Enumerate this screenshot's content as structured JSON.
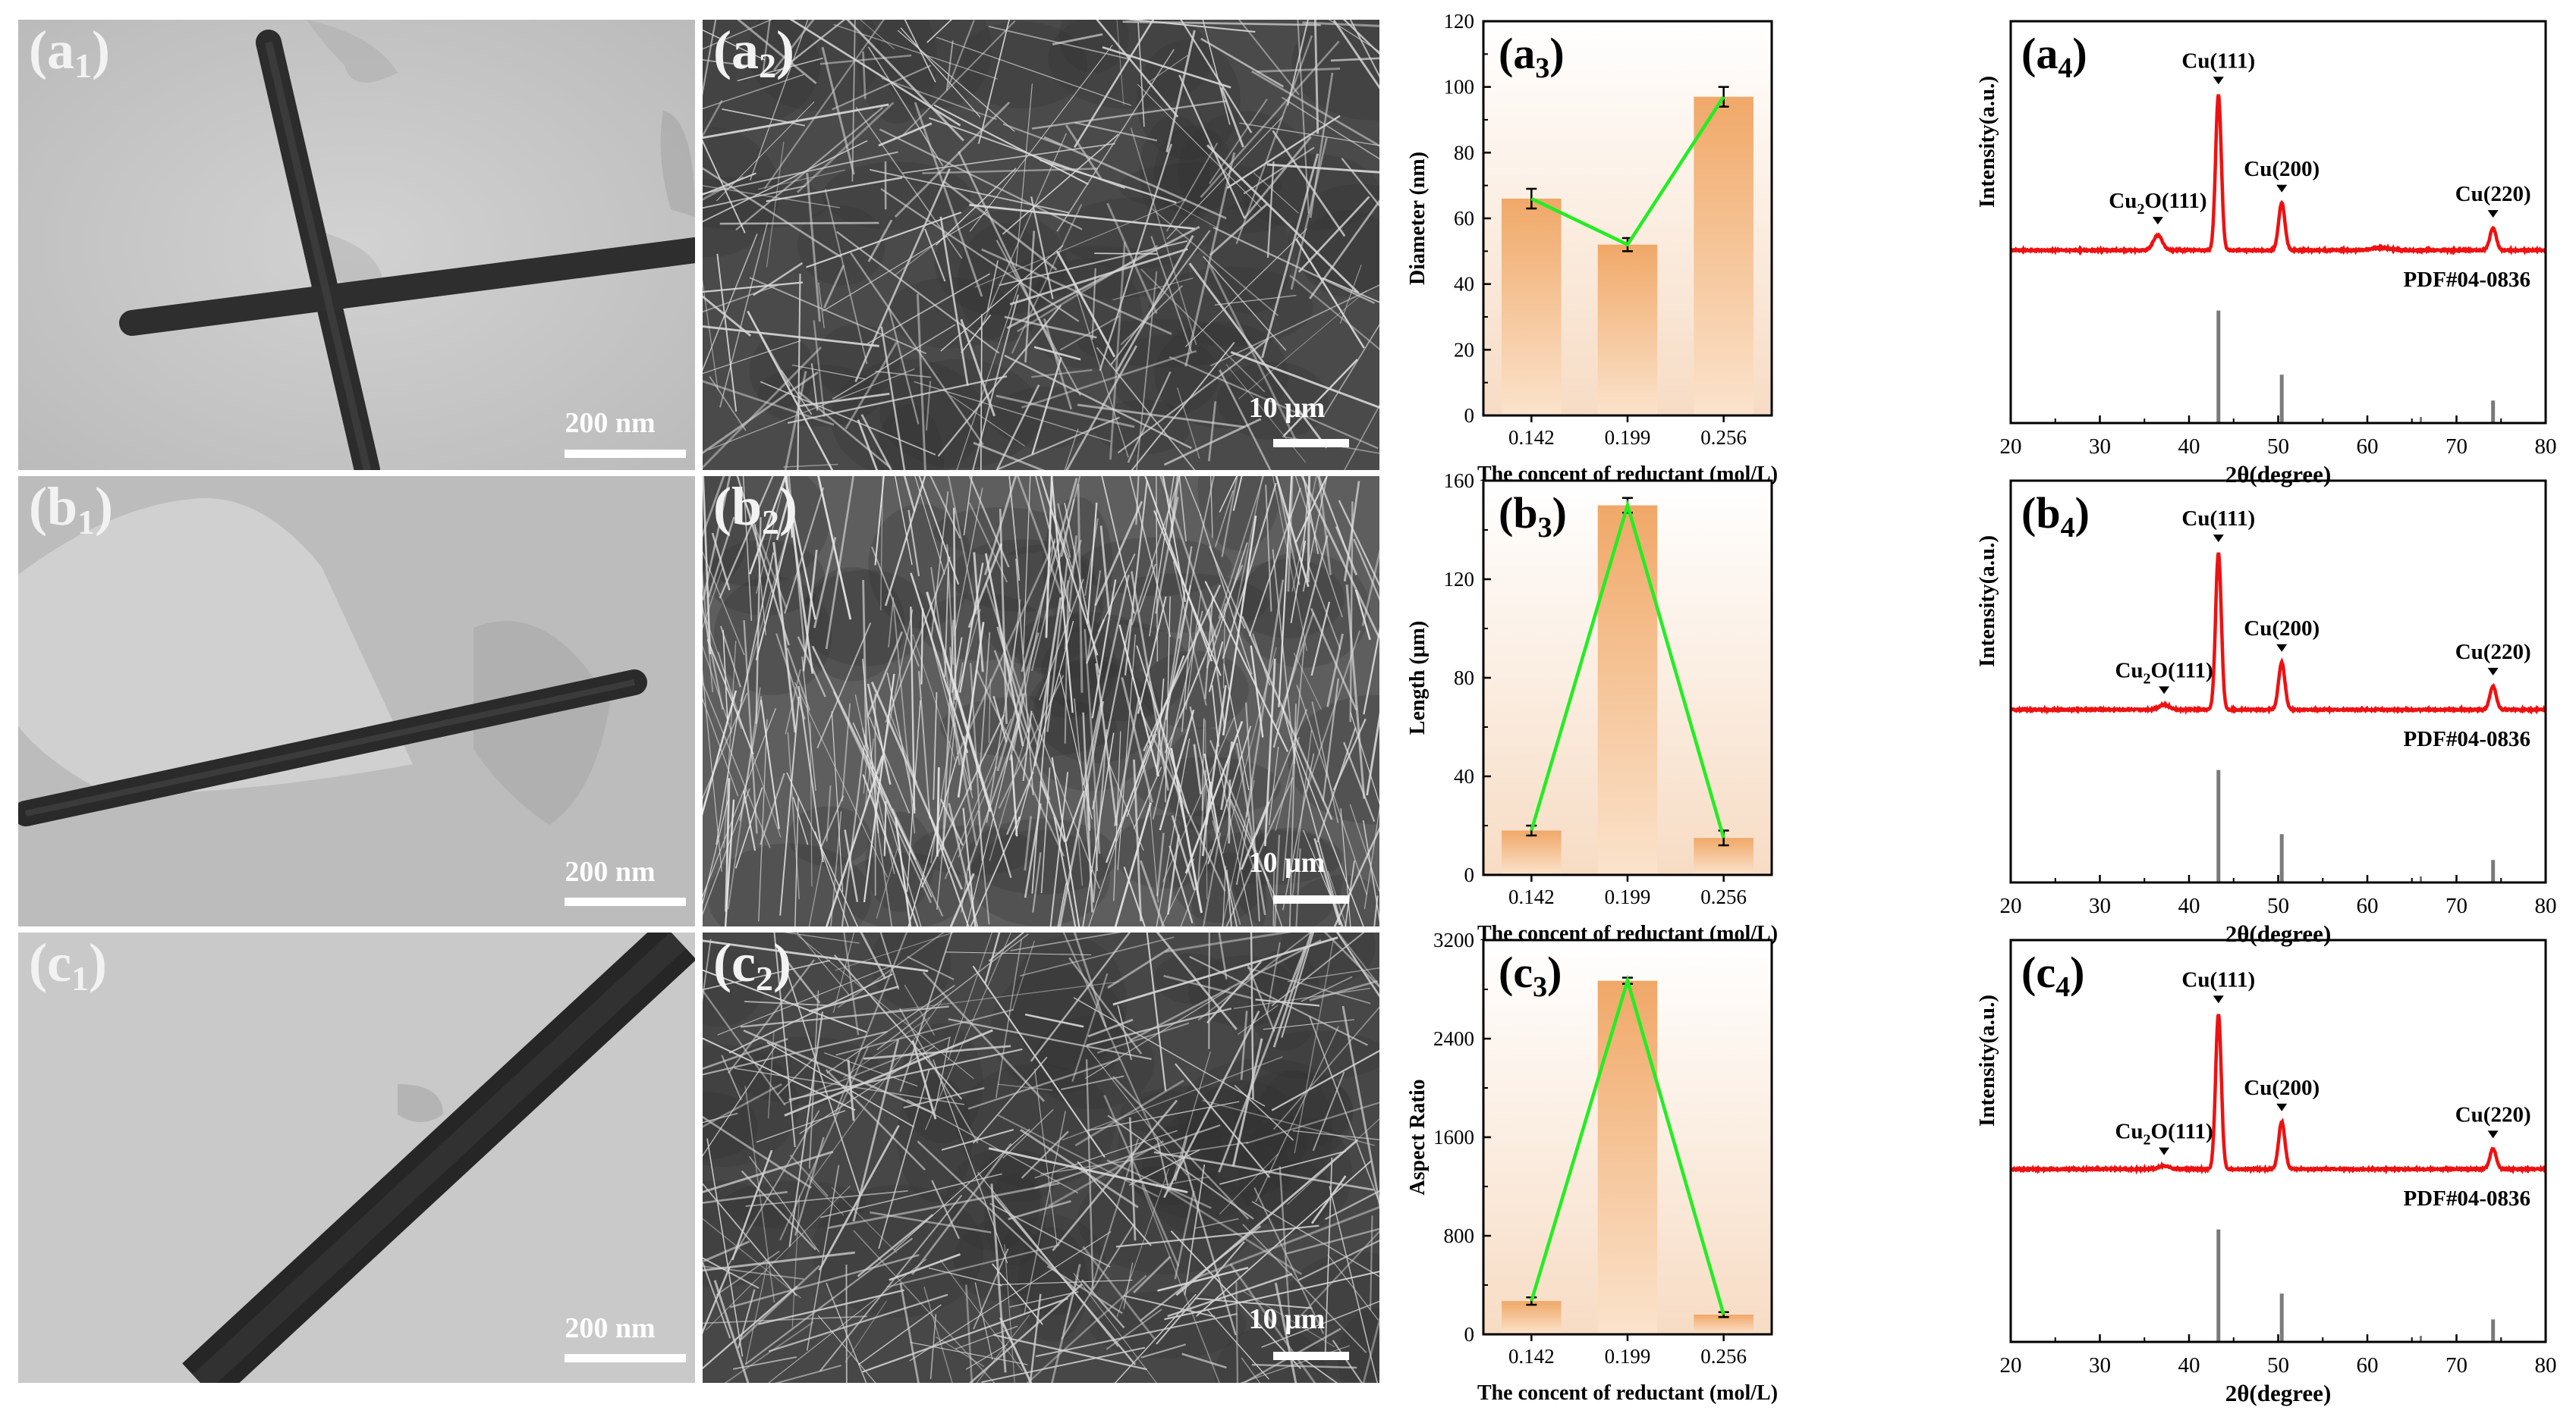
{
  "figure": {
    "panels": {
      "a1": {
        "label_main": "(a",
        "label_sub": "1",
        "label_end": ")",
        "scale_text": "200 nm"
      },
      "a2": {
        "label_main": "(a",
        "label_sub": "2",
        "label_end": ")",
        "scale_text": "10 μm"
      },
      "b1": {
        "label_main": "(b",
        "label_sub": "1",
        "label_end": ")",
        "scale_text": "200 nm"
      },
      "b2": {
        "label_main": "(b",
        "label_sub": "2",
        "label_end": ")",
        "scale_text": "10 μm"
      },
      "c1": {
        "label_main": "(c",
        "label_sub": "1",
        "label_end": ")",
        "scale_text": "200 nm"
      },
      "c2": {
        "label_main": "(c",
        "label_sub": "2",
        "label_end": ")",
        "scale_text": "10 μm"
      }
    },
    "colors": {
      "bar_top": "#f0a868",
      "bar_bottom": "#fbe3cc",
      "trend_line": "#22ee22",
      "xrd_line": "#ee1111",
      "ref_bar": "#7a7a7a",
      "bg_top": "#ffffff",
      "bg_bottom": "#f7dcc4"
    }
  },
  "chart_data": [
    {
      "id": "a3",
      "type": "bar",
      "panel_label_main": "(a",
      "panel_label_sub": "3",
      "panel_label_end": ")",
      "categories": [
        "0.142",
        "0.199",
        "0.256"
      ],
      "values": [
        66,
        52,
        97
      ],
      "errors": [
        3,
        2,
        3
      ],
      "ylabel": "Diameter (nm)",
      "xlabel": "The concent of reductant (mol/L)",
      "ylim": [
        0,
        120
      ],
      "yticks": [
        "0",
        "20",
        "40",
        "60",
        "80",
        "100",
        "120"
      ],
      "trend_line": true
    },
    {
      "id": "b3",
      "type": "bar",
      "panel_label_main": "(b",
      "panel_label_sub": "3",
      "panel_label_end": ")",
      "categories": [
        "0.142",
        "0.199",
        "0.256"
      ],
      "values": [
        18,
        150,
        15
      ],
      "errors": [
        2,
        3,
        3
      ],
      "ylabel": "Length (μm)",
      "xlabel": "The concent of reductant (mol/L)",
      "ylim": [
        0,
        160
      ],
      "yticks": [
        "0",
        "40",
        "80",
        "120",
        "160"
      ],
      "trend_line": true
    },
    {
      "id": "c3",
      "type": "bar",
      "panel_label_main": "(c",
      "panel_label_sub": "3",
      "panel_label_end": ")",
      "categories": [
        "0.142",
        "0.199",
        "0.256"
      ],
      "values": [
        270,
        2870,
        160
      ],
      "errors": [
        30,
        25,
        20
      ],
      "ylabel": "Aspect Ratio",
      "xlabel": "The concent of reductant (mol/L)",
      "ylim": [
        0,
        3200
      ],
      "yticks": [
        "0",
        "800",
        "1600",
        "2400",
        "3200"
      ],
      "trend_line": true
    },
    {
      "id": "a4",
      "type": "line",
      "panel_label_main": "(a",
      "panel_label_sub": "4",
      "panel_label_end": ")",
      "xlabel": "2θ(degree)",
      "ylabel": "Intensity(a.u.)",
      "xlim": [
        20,
        80
      ],
      "xticks": [
        "20",
        "30",
        "40",
        "50",
        "60",
        "70",
        "80"
      ],
      "baseline": 0.14,
      "peaks": [
        {
          "x": 36.5,
          "height": 0.09,
          "width": 0.7
        },
        {
          "x": 43.3,
          "height": 0.92,
          "width": 0.45
        },
        {
          "x": 50.4,
          "height": 0.28,
          "width": 0.5
        },
        {
          "x": 61.5,
          "height": 0.015,
          "width": 1.5
        },
        {
          "x": 74.1,
          "height": 0.13,
          "width": 0.5
        }
      ],
      "peak_labels": [
        {
          "x": 36.5,
          "main": "Cu",
          "sub": "2",
          "rest": "O(111)"
        },
        {
          "x": 43.3,
          "main": "Cu(111)",
          "sub": "",
          "rest": ""
        },
        {
          "x": 50.4,
          "main": "Cu(200)",
          "sub": "",
          "rest": ""
        },
        {
          "x": 74.1,
          "main": "Cu(220)",
          "sub": "",
          "rest": ""
        }
      ],
      "reference_label": "PDF#04-0836",
      "reference_lines": [
        {
          "x": 43.3,
          "intensity": 1.0
        },
        {
          "x": 50.4,
          "intensity": 0.43
        },
        {
          "x": 74.1,
          "intensity": 0.2
        }
      ]
    },
    {
      "id": "b4",
      "type": "line",
      "panel_label_main": "(b",
      "panel_label_sub": "4",
      "panel_label_end": ")",
      "xlabel": "2θ(degree)",
      "ylabel": "Intensity(a.u.)",
      "xlim": [
        20,
        80
      ],
      "xticks": [
        "20",
        "30",
        "40",
        "50",
        "60",
        "70",
        "80"
      ],
      "baseline": 0.14,
      "peaks": [
        {
          "x": 37.2,
          "height": 0.03,
          "width": 0.8
        },
        {
          "x": 43.3,
          "height": 0.93,
          "width": 0.45
        },
        {
          "x": 50.4,
          "height": 0.28,
          "width": 0.5
        },
        {
          "x": 74.1,
          "height": 0.14,
          "width": 0.5
        }
      ],
      "peak_labels": [
        {
          "x": 37.2,
          "main": "Cu",
          "sub": "2",
          "rest": "O(111)"
        },
        {
          "x": 43.3,
          "main": "Cu(111)",
          "sub": "",
          "rest": ""
        },
        {
          "x": 50.4,
          "main": "Cu(200)",
          "sub": "",
          "rest": ""
        },
        {
          "x": 74.1,
          "main": "Cu(220)",
          "sub": "",
          "rest": ""
        }
      ],
      "reference_label": "PDF#04-0836",
      "reference_lines": [
        {
          "x": 43.3,
          "intensity": 1.0
        },
        {
          "x": 50.4,
          "intensity": 0.43
        },
        {
          "x": 74.1,
          "intensity": 0.2
        }
      ]
    },
    {
      "id": "c4",
      "type": "line",
      "panel_label_main": "(c",
      "panel_label_sub": "4",
      "panel_label_end": ")",
      "xlabel": "2θ(degree)",
      "ylabel": "Intensity(a.u.)",
      "xlim": [
        20,
        80
      ],
      "xticks": [
        "20",
        "30",
        "40",
        "50",
        "60",
        "70",
        "80"
      ],
      "baseline": 0.14,
      "peaks": [
        {
          "x": 37.2,
          "height": 0.02,
          "width": 0.8
        },
        {
          "x": 43.3,
          "height": 0.92,
          "width": 0.45
        },
        {
          "x": 50.4,
          "height": 0.28,
          "width": 0.5
        },
        {
          "x": 74.1,
          "height": 0.12,
          "width": 0.5
        }
      ],
      "peak_labels": [
        {
          "x": 37.2,
          "main": "Cu",
          "sub": "2",
          "rest": "O(111)"
        },
        {
          "x": 43.3,
          "main": "Cu(111)",
          "sub": "",
          "rest": ""
        },
        {
          "x": 50.4,
          "main": "Cu(200)",
          "sub": "",
          "rest": ""
        },
        {
          "x": 74.1,
          "main": "Cu(220)",
          "sub": "",
          "rest": ""
        }
      ],
      "reference_label": "PDF#04-0836",
      "reference_lines": [
        {
          "x": 43.3,
          "intensity": 1.0
        },
        {
          "x": 50.4,
          "intensity": 0.43
        },
        {
          "x": 74.1,
          "intensity": 0.2
        }
      ]
    }
  ]
}
